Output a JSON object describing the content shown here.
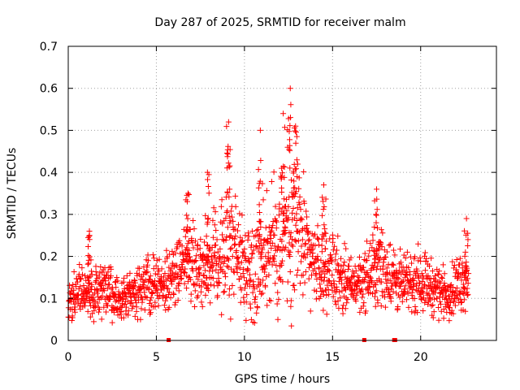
{
  "chart_data": {
    "type": "scatter",
    "title": "Day 287 of 2025, SRMTID for receiver malm",
    "xlabel": "GPS time / hours",
    "ylabel": "SRMTID / TECUs",
    "xlim": [
      0,
      24.3
    ],
    "ylim": [
      0,
      0.7
    ],
    "xticks": [
      0,
      5,
      10,
      15,
      20
    ],
    "yticks": [
      0,
      0.1,
      0.2,
      0.3,
      0.4,
      0.5,
      0.6,
      0.7
    ],
    "grid": true,
    "marker": "+",
    "color": "#ff0000",
    "data_end_hour": 22.7,
    "zero_markers_x": [
      5.7,
      16.8,
      18.5,
      18.55
    ],
    "series": [
      {
        "name": "SRMTID",
        "envelope": {
          "x": [
            0,
            1,
            2,
            2.5,
            3,
            4,
            5,
            5.5,
            6,
            6.5,
            7,
            7.5,
            8,
            8.5,
            9,
            9.2,
            9.6,
            10,
            10.5,
            11,
            11.5,
            12,
            12.5,
            12.8,
            13,
            13.5,
            14,
            14.5,
            15,
            15.5,
            16,
            16.5,
            17,
            17.5,
            18,
            18.5,
            19,
            19.5,
            20,
            20.5,
            21,
            21.5,
            22,
            22.7
          ],
          "mean": [
            0.1,
            0.11,
            0.12,
            0.11,
            0.09,
            0.12,
            0.14,
            0.13,
            0.17,
            0.18,
            0.19,
            0.17,
            0.18,
            0.2,
            0.22,
            0.25,
            0.2,
            0.17,
            0.18,
            0.2,
            0.22,
            0.24,
            0.27,
            0.28,
            0.26,
            0.21,
            0.18,
            0.17,
            0.17,
            0.15,
            0.13,
            0.14,
            0.15,
            0.18,
            0.17,
            0.15,
            0.13,
            0.14,
            0.15,
            0.13,
            0.12,
            0.11,
            0.13,
            0.15
          ],
          "spread": [
            0.04,
            0.05,
            0.05,
            0.05,
            0.04,
            0.05,
            0.05,
            0.05,
            0.06,
            0.07,
            0.08,
            0.06,
            0.07,
            0.08,
            0.11,
            0.14,
            0.1,
            0.08,
            0.09,
            0.11,
            0.12,
            0.14,
            0.17,
            0.18,
            0.15,
            0.09,
            0.07,
            0.07,
            0.07,
            0.06,
            0.05,
            0.05,
            0.06,
            0.08,
            0.07,
            0.06,
            0.05,
            0.05,
            0.06,
            0.05,
            0.05,
            0.04,
            0.05,
            0.06
          ]
        },
        "peaks": [
          {
            "x": 9.1,
            "y": 0.52
          },
          {
            "x": 10.9,
            "y": 0.5
          },
          {
            "x": 12.2,
            "y": 0.54
          },
          {
            "x": 12.6,
            "y": 0.6
          },
          {
            "x": 12.9,
            "y": 0.51
          },
          {
            "x": 7.9,
            "y": 0.4
          },
          {
            "x": 17.5,
            "y": 0.36
          },
          {
            "x": 22.6,
            "y": 0.29
          },
          {
            "x": 1.2,
            "y": 0.26
          },
          {
            "x": 6.8,
            "y": 0.35
          },
          {
            "x": 14.5,
            "y": 0.37
          }
        ],
        "points_per_hour": 75
      }
    ]
  }
}
